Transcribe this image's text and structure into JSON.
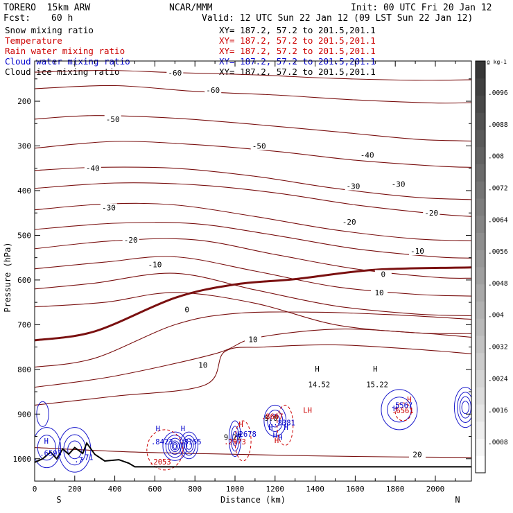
{
  "header": {
    "model": "TORERO  15km ARW",
    "org": "NCAR/MMM",
    "init": "Init: 00 UTC Fri 20 Jan 12",
    "fcst_label": "Fcst:",
    "fcst_value": "60 h",
    "valid": "Valid: 12 UTC Sun 22 Jan 12 (09 LST Sun 22 Jan 12)"
  },
  "legend_fields": [
    {
      "label": "Snow mixing ratio",
      "xy": "XY= 187.2, 57.2 to 201.5,201.1",
      "color": "#000000"
    },
    {
      "label": "Temperature",
      "xy": "XY= 187.2, 57.2 to 201.5,201.1",
      "color": "#cc0000"
    },
    {
      "label": "Rain water mixing ratio",
      "xy": "XY= 187.2, 57.2 to 201.5,201.1",
      "color": "#cc0000"
    },
    {
      "label": "Cloud water mixing ratio",
      "xy": "XY= 187.2, 57.2 to 201.5,201.1",
      "color": "#0000cc"
    },
    {
      "label": "Cloud ice mixing ratio",
      "xy": "XY= 187.2, 57.2 to 201.5,201.1",
      "color": "#000000"
    }
  ],
  "chart_data": {
    "type": "contour-cross-section",
    "xlabel": "Distance (km)",
    "ylabel": "Pressure (hPa)",
    "xlim": [
      0,
      2180
    ],
    "ylim_pressure": [
      1050,
      110
    ],
    "x_ticks": [
      0,
      200,
      400,
      600,
      800,
      1000,
      1200,
      1400,
      1600,
      1800,
      2000
    ],
    "y_ticks": [
      200,
      300,
      400,
      500,
      600,
      700,
      800,
      900,
      1000
    ],
    "x_end_labels": {
      "left": "S",
      "right": "N"
    },
    "temperature_contours": [
      {
        "value": -60,
        "labeled": true,
        "points": [
          [
            0,
            135
          ],
          [
            350,
            131
          ],
          [
            700,
            136
          ],
          [
            1100,
            141
          ],
          [
            1500,
            149
          ],
          [
            1900,
            153
          ],
          [
            2180,
            152
          ]
        ]
      },
      {
        "value": -60,
        "labeled": true,
        "points": [
          [
            0,
            172
          ],
          [
            400,
            165
          ],
          [
            800,
            178
          ],
          [
            1200,
            186
          ],
          [
            1600,
            197
          ],
          [
            2000,
            204
          ],
          [
            2180,
            203
          ]
        ]
      },
      {
        "value": -50,
        "labeled": true,
        "points": [
          [
            0,
            240
          ],
          [
            300,
            232
          ],
          [
            700,
            238
          ],
          [
            1100,
            252
          ],
          [
            1500,
            268
          ],
          [
            1900,
            285
          ],
          [
            2180,
            289
          ]
        ]
      },
      {
        "value": -50,
        "labeled": true,
        "points": [
          [
            0,
            305
          ],
          [
            400,
            290
          ],
          [
            800,
            297
          ],
          [
            1200,
            312
          ],
          [
            1600,
            332
          ],
          [
            2000,
            345
          ],
          [
            2180,
            348
          ]
        ]
      },
      {
        "value": -40,
        "labeled": true,
        "points": [
          [
            0,
            355
          ],
          [
            300,
            348
          ],
          [
            700,
            350
          ],
          [
            1100,
            368
          ],
          [
            1500,
            395
          ],
          [
            1900,
            415
          ],
          [
            2180,
            420
          ]
        ]
      },
      {
        "value": -40,
        "labeled": true,
        "points": [
          [
            0,
            395
          ],
          [
            400,
            383
          ],
          [
            800,
            387
          ],
          [
            1200,
            405
          ],
          [
            1600,
            432
          ],
          [
            2000,
            452
          ],
          [
            2180,
            458
          ]
        ]
      },
      {
        "value": -30,
        "labeled": true,
        "points": [
          [
            0,
            443
          ],
          [
            350,
            430
          ],
          [
            700,
            432
          ],
          [
            1100,
            458
          ],
          [
            1500,
            488
          ],
          [
            1900,
            508
          ],
          [
            2180,
            512
          ]
        ]
      },
      {
        "value": -30,
        "labeled": true,
        "points": [
          [
            0,
            487
          ],
          [
            400,
            473
          ],
          [
            800,
            474
          ],
          [
            1200,
            500
          ],
          [
            1600,
            530
          ],
          [
            2000,
            548
          ],
          [
            2180,
            551
          ]
        ]
      },
      {
        "value": -20,
        "labeled": true,
        "points": [
          [
            0,
            530
          ],
          [
            400,
            512
          ],
          [
            800,
            510
          ],
          [
            1200,
            543
          ],
          [
            1600,
            575
          ],
          [
            2000,
            594
          ],
          [
            2180,
            596
          ]
        ]
      },
      {
        "value": -20,
        "labeled": true,
        "points": [
          [
            0,
            575
          ],
          [
            350,
            560
          ],
          [
            700,
            548
          ],
          [
            1100,
            580
          ],
          [
            1500,
            615
          ],
          [
            1900,
            632
          ],
          [
            2180,
            636
          ]
        ]
      },
      {
        "value": -10,
        "labeled": true,
        "points": [
          [
            0,
            620
          ],
          [
            300,
            607
          ],
          [
            700,
            585
          ],
          [
            1100,
            622
          ],
          [
            1500,
            658
          ],
          [
            1900,
            676
          ],
          [
            2180,
            680
          ]
        ]
      },
      {
        "value": -10,
        "labeled": true,
        "points": [
          [
            0,
            660
          ],
          [
            350,
            650
          ],
          [
            700,
            628
          ],
          [
            1100,
            652
          ],
          [
            1500,
            700
          ],
          [
            1900,
            718
          ],
          [
            2180,
            720
          ]
        ]
      },
      {
        "value": 0,
        "labeled": true,
        "bold": true,
        "points": [
          [
            0,
            735
          ],
          [
            300,
            715
          ],
          [
            700,
            640
          ],
          [
            1000,
            610
          ],
          [
            1300,
            598
          ],
          [
            1700,
            577
          ],
          [
            2180,
            572
          ]
        ]
      },
      {
        "value": 10,
        "labeled": true,
        "points": [
          [
            0,
            795
          ],
          [
            300,
            775
          ],
          [
            700,
            700
          ],
          [
            1000,
            675
          ],
          [
            1400,
            672
          ],
          [
            1800,
            678
          ],
          [
            2180,
            688
          ]
        ]
      },
      {
        "value": 10,
        "labeled": true,
        "points": [
          [
            0,
            840
          ],
          [
            400,
            815
          ],
          [
            900,
            765
          ],
          [
            1100,
            730
          ],
          [
            1500,
            710
          ],
          [
            1900,
            718
          ],
          [
            2180,
            728
          ]
        ]
      },
      {
        "value": 10,
        "labeled": true,
        "points": [
          [
            0,
            880
          ],
          [
            400,
            860
          ],
          [
            850,
            835
          ],
          [
            950,
            760
          ],
          [
            1150,
            750
          ],
          [
            1500,
            745
          ],
          [
            1900,
            755
          ],
          [
            2180,
            765
          ]
        ]
      },
      {
        "value": 20,
        "labeled": true,
        "points": [
          [
            0,
            975
          ],
          [
            500,
            985
          ],
          [
            1000,
            990
          ],
          [
            1600,
            995
          ],
          [
            2180,
            997
          ]
        ]
      }
    ],
    "temperature_labels": [
      {
        "text": "-60",
        "x": 700,
        "p": 136
      },
      {
        "text": "-60",
        "x": 890,
        "p": 175
      },
      {
        "text": "-50",
        "x": 390,
        "p": 240
      },
      {
        "text": "-50",
        "x": 1120,
        "p": 300
      },
      {
        "text": "-40",
        "x": 1660,
        "p": 320
      },
      {
        "text": "-40",
        "x": 290,
        "p": 350
      },
      {
        "text": "-30",
        "x": 1590,
        "p": 390
      },
      {
        "text": "-30",
        "x": 1815,
        "p": 385
      },
      {
        "text": "-30",
        "x": 370,
        "p": 438
      },
      {
        "text": "-20",
        "x": 1570,
        "p": 470
      },
      {
        "text": "-20",
        "x": 1980,
        "p": 450
      },
      {
        "text": "-20",
        "x": 480,
        "p": 510
      },
      {
        "text": "-10",
        "x": 1910,
        "p": 535
      },
      {
        "text": "-10",
        "x": 600,
        "p": 565
      },
      {
        "text": "0",
        "x": 760,
        "p": 666
      },
      {
        "text": "0",
        "x": 1740,
        "p": 587
      },
      {
        "text": "10",
        "x": 1720,
        "p": 628
      },
      {
        "text": "10",
        "x": 1090,
        "p": 733
      },
      {
        "text": "10",
        "x": 840,
        "p": 790
      },
      {
        "text": "20",
        "x": 1910,
        "p": 990
      }
    ],
    "extrema_labels": [
      {
        "text": "H",
        "x": 1410,
        "p": 805,
        "color": "#000000"
      },
      {
        "text": "14.52",
        "x": 1420,
        "p": 840,
        "color": "#000000"
      },
      {
        "text": "H",
        "x": 1700,
        "p": 805,
        "color": "#000000"
      },
      {
        "text": "15.22",
        "x": 1710,
        "p": 840,
        "color": "#000000"
      },
      {
        "text": "H",
        "x": 1870,
        "p": 873,
        "color": "#cc0000"
      },
      {
        "text": "LH",
        "x": 1362,
        "p": 897,
        "color": "#cc0000"
      },
      {
        "text": "H",
        "x": 1030,
        "p": 929,
        "color": "#cc0000"
      },
      {
        "text": "9.27",
        "x": 988,
        "p": 958,
        "color": "#000000"
      },
      {
        "text": "H",
        "x": 1178,
        "p": 935,
        "color": "#0000cc"
      },
      {
        "text": "H",
        "x": 1255,
        "p": 935,
        "color": "#0000cc"
      },
      {
        "text": "H",
        "x": 1200,
        "p": 953,
        "color": "#0000cc"
      },
      {
        "text": "H",
        "x": 1208,
        "p": 965,
        "color": "#cc0000"
      },
      {
        "text": "H",
        "x": 1227,
        "p": 958,
        "color": "#0000cc"
      },
      {
        "text": "9.0",
        "x": 1180,
        "p": 915,
        "color": "#000000"
      },
      {
        "text": ".8381",
        "x": 1246,
        "p": 925,
        "color": "#0000cc"
      },
      {
        "text": ".8667",
        "x": 1186,
        "p": 911,
        "color": "#cc0000"
      },
      {
        "text": "H",
        "x": 1022,
        "p": 951,
        "color": "#0000cc"
      },
      {
        "text": ".2678",
        "x": 1052,
        "p": 951,
        "color": "#0000cc"
      },
      {
        "text": ".2973",
        "x": 1000,
        "p": 968,
        "color": "#cc0000"
      },
      {
        "text": "H",
        "x": 1800,
        "p": 893,
        "color": "#0000cc"
      },
      {
        "text": ".5567",
        "x": 1832,
        "p": 886,
        "color": "#0000cc"
      },
      {
        "text": ".6561",
        "x": 1837,
        "p": 898,
        "color": "#cc0000"
      },
      {
        "text": "H",
        "x": 615,
        "p": 938,
        "color": "#0000cc"
      },
      {
        "text": "H",
        "x": 740,
        "p": 938,
        "color": "#0000cc"
      },
      {
        "text": ".8423",
        "x": 636,
        "p": 968,
        "color": "#0000cc"
      },
      {
        "text": ".8155",
        "x": 778,
        "p": 968,
        "color": "#0000cc"
      },
      {
        "text": ".2053",
        "x": 626,
        "p": 1013,
        "color": "#cc0000"
      },
      {
        "text": "H",
        "x": 58,
        "p": 966,
        "color": "#0000cc"
      },
      {
        "text": ".6593",
        "x": 80,
        "p": 993,
        "color": "#0000cc"
      },
      {
        "text": ".71",
        "x": 260,
        "p": 1003,
        "color": "#0000cc"
      },
      {
        "text": ".7",
        "x": 220,
        "p": 1008,
        "color": "#0000cc"
      }
    ],
    "colorbar": {
      "unit": "g kg-1",
      "ticks": [
        ".0096",
        ".0088",
        ".008",
        ".0072",
        ".0064",
        ".0056",
        ".0048",
        ".004",
        ".0032",
        ".0024",
        ".0016",
        ".0008"
      ]
    }
  }
}
